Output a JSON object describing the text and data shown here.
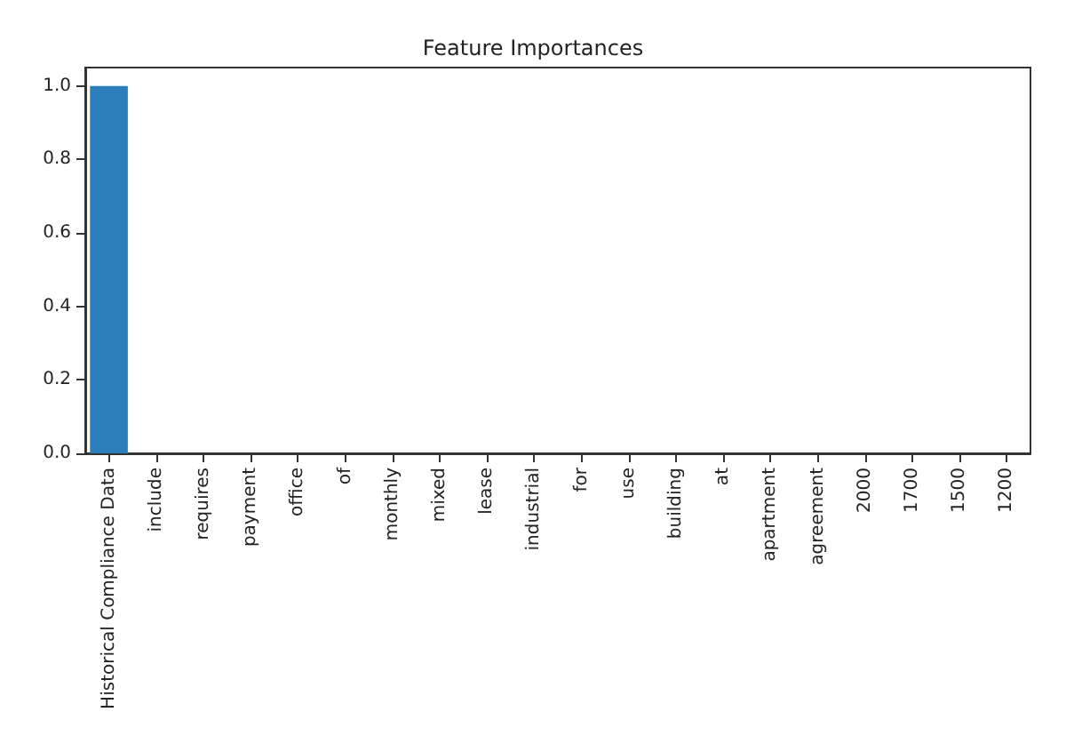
{
  "chart_data": {
    "type": "bar",
    "title": "Feature Importances",
    "categories": [
      "Historical Compliance Data",
      "include",
      "requires",
      "payment",
      "office",
      "of",
      "monthly",
      "mixed",
      "lease",
      "industrial",
      "for",
      "use",
      "building",
      "at",
      "apartment",
      "agreement",
      "2000",
      "1700",
      "1500",
      "1200"
    ],
    "values": [
      1.0,
      0,
      0,
      0,
      0,
      0,
      0,
      0,
      0,
      0,
      0,
      0,
      0,
      0,
      0,
      0,
      0,
      0,
      0,
      0
    ],
    "color": "#2a7fba",
    "ylim": [
      0,
      1.05
    ],
    "yticks": [
      {
        "value": 0,
        "label": "0.0"
      },
      0.2,
      0.4,
      0.6,
      0.8,
      {
        "value": 1,
        "label": "1.0"
      }
    ],
    "grid": false
  }
}
